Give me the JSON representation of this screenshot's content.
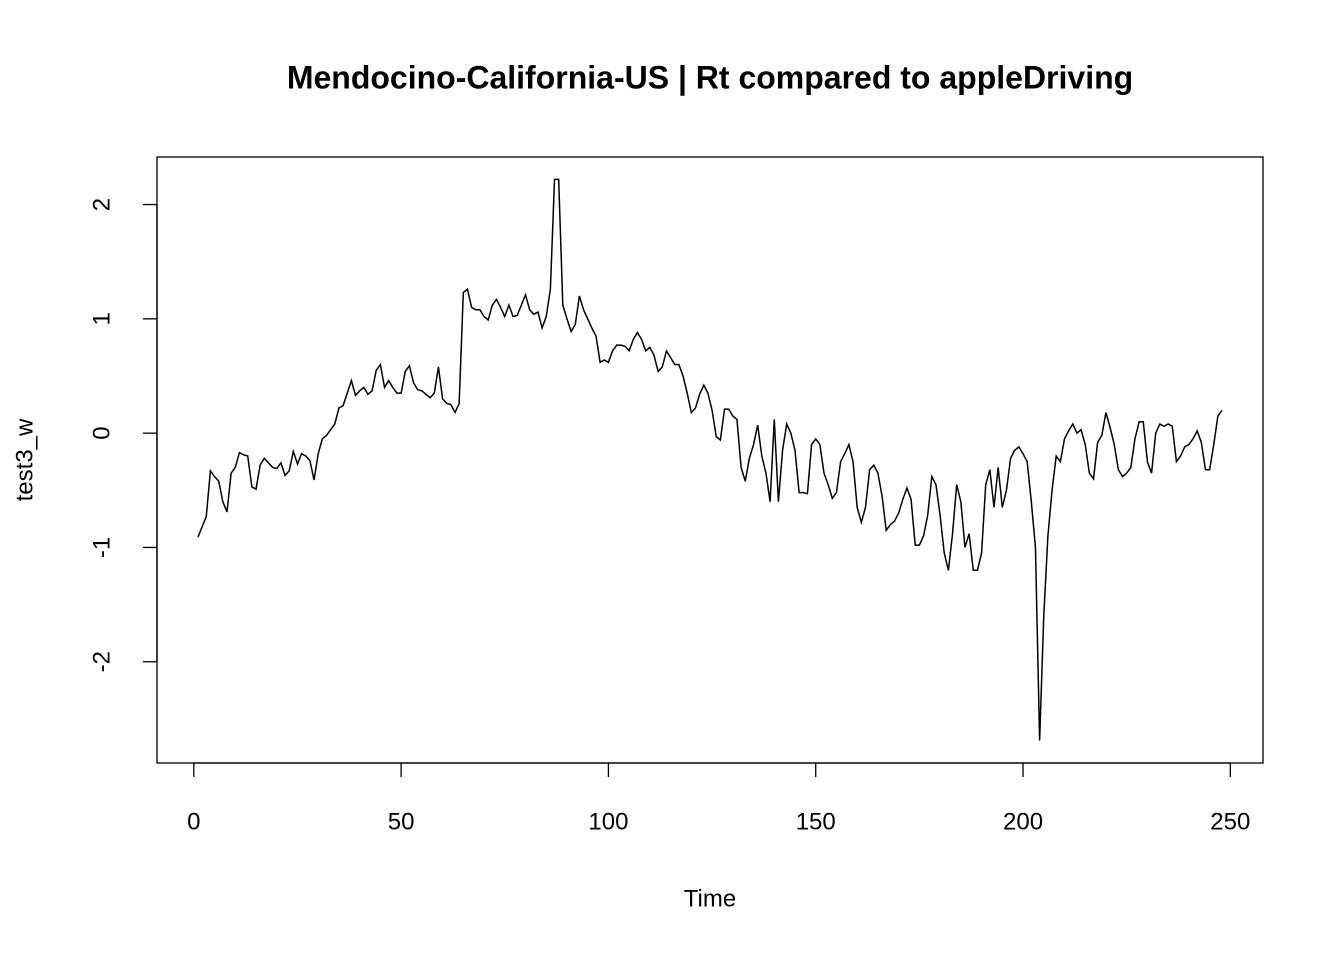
{
  "chart_data": {
    "type": "line",
    "title": "Mendocino-California-US | Rt compared to appleDriving",
    "x_label": "Time",
    "y_label": "test3_w",
    "xlim": [
      -8.88,
      257.88
    ],
    "ylim": [
      -2.886,
      2.416
    ],
    "xticks": [
      0,
      50,
      100,
      150,
      200,
      250
    ],
    "yticks": [
      -2,
      -1,
      0,
      1,
      2
    ],
    "color": "#000000",
    "x": [
      1,
      2,
      3,
      4,
      5,
      6,
      7,
      8,
      9,
      10,
      11,
      12,
      13,
      14,
      15,
      16,
      17,
      18,
      19,
      20,
      21,
      22,
      23,
      24,
      25,
      26,
      27,
      28,
      29,
      30,
      31,
      32,
      33,
      34,
      35,
      36,
      37,
      38,
      39,
      40,
      41,
      42,
      43,
      44,
      45,
      46,
      47,
      48,
      49,
      50,
      51,
      52,
      53,
      54,
      55,
      56,
      57,
      58,
      59,
      60,
      61,
      62,
      63,
      64,
      65,
      66,
      67,
      68,
      69,
      70,
      71,
      72,
      73,
      74,
      75,
      76,
      77,
      78,
      79,
      80,
      81,
      82,
      83,
      84,
      85,
      86,
      87,
      88,
      89,
      90,
      91,
      92,
      93,
      94,
      95,
      96,
      97,
      98,
      99,
      100,
      101,
      102,
      103,
      104,
      105,
      106,
      107,
      108,
      109,
      110,
      111,
      112,
      113,
      114,
      115,
      116,
      117,
      118,
      119,
      120,
      121,
      122,
      123,
      124,
      125,
      126,
      127,
      128,
      129,
      130,
      131,
      132,
      133,
      134,
      135,
      136,
      137,
      138,
      139,
      140,
      141,
      142,
      143,
      144,
      145,
      146,
      147,
      148,
      149,
      150,
      151,
      152,
      153,
      154,
      155,
      156,
      157,
      158,
      159,
      160,
      161,
      162,
      163,
      164,
      165,
      166,
      167,
      168,
      169,
      170,
      171,
      172,
      173,
      174,
      175,
      176,
      177,
      178,
      179,
      180,
      181,
      182,
      183,
      184,
      185,
      186,
      187,
      188,
      189,
      190,
      191,
      192,
      193,
      194,
      195,
      196,
      197,
      198,
      199,
      200,
      201,
      202,
      203,
      204,
      205,
      206,
      207,
      208,
      209,
      210,
      211,
      212,
      213,
      214,
      215,
      216,
      217,
      218,
      219,
      220,
      221,
      222,
      223,
      224,
      225,
      226,
      227,
      228,
      229,
      230,
      231,
      232,
      233,
      234,
      235,
      236,
      237,
      238,
      239,
      240,
      241,
      242,
      243,
      244,
      245,
      246,
      247,
      248
    ],
    "values": [
      -0.91,
      -0.82,
      -0.73,
      -0.33,
      -0.38,
      -0.42,
      -0.6,
      -0.69,
      -0.35,
      -0.3,
      -0.17,
      -0.19,
      -0.2,
      -0.47,
      -0.49,
      -0.28,
      -0.22,
      -0.26,
      -0.3,
      -0.31,
      -0.26,
      -0.37,
      -0.33,
      -0.16,
      -0.27,
      -0.18,
      -0.2,
      -0.24,
      -0.41,
      -0.18,
      -0.05,
      -0.02,
      0.03,
      0.08,
      0.22,
      0.24,
      0.35,
      0.46,
      0.33,
      0.37,
      0.4,
      0.34,
      0.37,
      0.55,
      0.6,
      0.4,
      0.46,
      0.4,
      0.35,
      0.35,
      0.54,
      0.59,
      0.44,
      0.38,
      0.37,
      0.34,
      0.31,
      0.35,
      0.58,
      0.3,
      0.26,
      0.25,
      0.18,
      0.26,
      1.23,
      1.26,
      1.1,
      1.08,
      1.08,
      1.02,
      0.99,
      1.12,
      1.17,
      1.1,
      1.02,
      1.12,
      1.02,
      1.03,
      1.12,
      1.21,
      1.08,
      1.04,
      1.06,
      0.92,
      1.02,
      1.26,
      2.22,
      2.22,
      1.12,
      1.0,
      0.89,
      0.95,
      1.2,
      1.08,
      1.0,
      0.92,
      0.85,
      0.62,
      0.64,
      0.62,
      0.72,
      0.77,
      0.77,
      0.76,
      0.72,
      0.82,
      0.88,
      0.82,
      0.72,
      0.75,
      0.68,
      0.54,
      0.58,
      0.72,
      0.66,
      0.6,
      0.6,
      0.5,
      0.35,
      0.18,
      0.22,
      0.34,
      0.42,
      0.35,
      0.2,
      -0.03,
      -0.06,
      0.21,
      0.21,
      0.15,
      0.12,
      -0.3,
      -0.42,
      -0.22,
      -0.1,
      0.07,
      -0.2,
      -0.35,
      -0.6,
      0.12,
      -0.6,
      -0.15,
      0.08,
      0.0,
      -0.15,
      -0.52,
      -0.52,
      -0.53,
      -0.1,
      -0.05,
      -0.1,
      -0.35,
      -0.45,
      -0.57,
      -0.52,
      -0.25,
      -0.18,
      -0.1,
      -0.25,
      -0.65,
      -0.78,
      -0.65,
      -0.32,
      -0.28,
      -0.35,
      -0.55,
      -0.85,
      -0.8,
      -0.77,
      -0.7,
      -0.58,
      -0.48,
      -0.58,
      -0.98,
      -0.98,
      -0.9,
      -0.72,
      -0.38,
      -0.45,
      -0.72,
      -1.05,
      -1.2,
      -0.88,
      -0.45,
      -0.6,
      -1.0,
      -0.88,
      -1.2,
      -1.2,
      -1.05,
      -0.45,
      -0.32,
      -0.65,
      -0.3,
      -0.65,
      -0.5,
      -0.22,
      -0.15,
      -0.12,
      -0.18,
      -0.25,
      -0.6,
      -1.0,
      -2.69,
      -1.6,
      -0.9,
      -0.5,
      -0.2,
      -0.25,
      -0.05,
      0.02,
      0.08,
      0.0,
      0.03,
      -0.1,
      -0.35,
      -0.4,
      -0.08,
      -0.02,
      0.18,
      0.05,
      -0.1,
      -0.32,
      -0.38,
      -0.35,
      -0.3,
      -0.05,
      0.1,
      0.1,
      -0.25,
      -0.35,
      0.0,
      0.08,
      0.06,
      0.08,
      0.06,
      -0.25,
      -0.2,
      -0.12,
      -0.1,
      -0.05,
      0.02,
      -0.08,
      -0.32,
      -0.32,
      -0.1,
      0.15,
      0.2
    ]
  }
}
